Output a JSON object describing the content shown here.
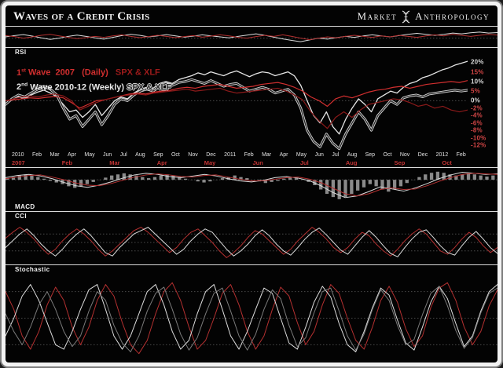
{
  "header": {
    "title": "Waves of a Credit Crisis",
    "brand": {
      "left": "Market",
      "right": "Anthropology"
    }
  },
  "chart_data": {
    "type": "line",
    "title": "Waves of a Credit Crisis",
    "xaxis": {
      "top_row": {
        "color": "#e2e2e2",
        "labels": [
          "2010",
          "Feb",
          "Mar",
          "Apr",
          "May",
          "Jun",
          "Jul",
          "Aug",
          "Sep",
          "Oct",
          "Nov",
          "Dec",
          "2011",
          "Feb",
          "Mar",
          "Apr",
          "May",
          "Jun",
          "Jul",
          "Aug",
          "Sep",
          "Oct",
          "Nov",
          "Dec",
          "2012",
          "Feb"
        ]
      },
      "bottom_row": {
        "color": "#c33434",
        "labels": [
          "2007",
          "Feb",
          "Mar",
          "Apr",
          "May",
          "Jun",
          "Jul",
          "Aug",
          "Sep",
          "Oct"
        ]
      }
    },
    "main": {
      "legend": [
        {
          "segments": [
            {
              "text": "1",
              "sup": "st",
              "color": "#d22f2f"
            },
            {
              "text": " Wave  2007",
              "color": "#d22f2f"
            },
            {
              "text": "   (Daily)",
              "color": "#d22f2f"
            },
            {
              "text": "   SPX & XLF",
              "color": "#9e1b1b"
            }
          ]
        },
        {
          "segments": [
            {
              "text": "2",
              "sup": "nd",
              "color": "#e8e8e8"
            },
            {
              "text": " Wave 2010-12",
              "color": "#e8e8e8"
            },
            {
              "text": " (Weekly)",
              "color": "#e8e8e8"
            },
            {
              "text": " SPX & XLF",
              "color": "#2b2b2b",
              "outline": true
            }
          ]
        }
      ],
      "axis": {
        "pos_max": 23,
        "neg_min": -13.5,
        "zero_frac": 0.47
      },
      "gridlines": [
        0
      ],
      "ylabels": [
        {
          "text": "20%",
          "value": 20,
          "color": "#d8d8d8"
        },
        {
          "text": "15%",
          "value": 15,
          "color": "#d04545"
        },
        {
          "text": "10%",
          "value": 10,
          "color": "#d8d8d8"
        },
        {
          "text": "5%",
          "value": 5,
          "color": "#d04545"
        },
        {
          "text": "0%",
          "value": 0,
          "color": "#d8d8d8"
        },
        {
          "text": "-2%",
          "value": -2,
          "color": "#d04545"
        },
        {
          "text": "-4%",
          "value": -4,
          "color": "#d04545"
        },
        {
          "text": "-6%",
          "value": -6,
          "color": "#d04545"
        },
        {
          "text": "-8%",
          "value": -8,
          "color": "#d04545"
        },
        {
          "text": "-10%",
          "value": -10,
          "color": "#d04545"
        },
        {
          "text": "-12%",
          "value": -12,
          "color": "#d04545"
        }
      ],
      "series": [
        {
          "name": "spx-2010-12",
          "color": "#e6e6e6",
          "width": 1.3,
          "values": [
            -1,
            0.5,
            2,
            1,
            3,
            4.5,
            5.5,
            4,
            2,
            -1,
            -3,
            -2.5,
            -4.5,
            -3,
            -1,
            -4,
            -2,
            0,
            2,
            1,
            4,
            6,
            7,
            6.5,
            9,
            10,
            9,
            11,
            12,
            13,
            14.5,
            13.5,
            15,
            14,
            13,
            14.5,
            15.5,
            14,
            12.5,
            14,
            15,
            14.5,
            13,
            14,
            15,
            13,
            8,
            0,
            -4,
            -6,
            -3,
            -7,
            -9,
            -5,
            -2,
            1,
            -1,
            -3,
            1,
            3,
            5,
            4,
            7,
            9,
            10,
            12,
            13,
            14.5,
            16,
            17,
            18.5,
            19.5,
            20.5
          ]
        },
        {
          "name": "xlf-2010-12",
          "color": "#262626",
          "halo": "#d4d4d4",
          "width": 1.3,
          "values": [
            -1,
            1,
            3,
            2,
            4,
            6,
            7.5,
            6,
            3,
            -2,
            -5,
            -4,
            -7,
            -5,
            -3,
            -6.5,
            -4,
            -1,
            1,
            0,
            3,
            5,
            6,
            5,
            7.5,
            9,
            8,
            9.5,
            10,
            11,
            10,
            9,
            10.5,
            9,
            7.5,
            8.5,
            9,
            7,
            5,
            6,
            7,
            6,
            4,
            5,
            6,
            3,
            -2,
            -8,
            -11,
            -12.5,
            -9,
            -11.5,
            -13,
            -9,
            -6,
            -3,
            -5,
            -8,
            -4,
            -2,
            0,
            -1,
            1.5,
            2.5,
            3,
            2,
            3.5,
            4,
            4.5,
            5,
            5.5,
            5,
            5.5
          ]
        },
        {
          "name": "spx-2007",
          "color": "#d22f2f",
          "width": 1.2,
          "values": [
            0,
            0.5,
            1,
            1.5,
            1.2,
            1.8,
            2.2,
            1.5,
            -0.5,
            -2,
            -1,
            0,
            0.5,
            1.5,
            2.5,
            3.5,
            4,
            3.5,
            4.5,
            5,
            5.5,
            6.5,
            7,
            6.5,
            7.5,
            8,
            8.5,
            7.5,
            6.5,
            7,
            7.5,
            8.5,
            9,
            9.5,
            8.5,
            7,
            5,
            2,
            0,
            -1.5,
            1,
            2.5,
            1.5,
            3,
            4.5,
            5.5,
            6,
            7,
            7.5,
            6.5,
            7.5,
            8.5,
            9,
            9.5,
            10,
            9.5,
            10.5
          ]
        },
        {
          "name": "xlf-2007",
          "color": "#8c1a1a",
          "width": 1.2,
          "values": [
            0,
            1,
            2,
            2.5,
            2,
            3,
            3.5,
            2.5,
            0,
            -2.5,
            -1.5,
            -0.5,
            0.5,
            1.5,
            2.5,
            3,
            3.5,
            3,
            4,
            4.5,
            5,
            5.5,
            6,
            5,
            5.5,
            6,
            6.5,
            5,
            4,
            4.5,
            5,
            5.5,
            6,
            6.5,
            5,
            3,
            0.5,
            -3,
            -5.5,
            -7.5,
            -4.5,
            -3,
            -4.5,
            -2.5,
            -1,
            -0.5,
            0,
            1,
            0.5,
            -0.5,
            -1.5,
            -1,
            -2,
            -1.5,
            -2.5,
            -3,
            -2.5
          ]
        }
      ]
    },
    "rsi": {
      "label": "RSI",
      "range": [
        15,
        95
      ],
      "gridlines": [
        50
      ],
      "series": [
        {
          "name": "rsi-2010-12",
          "color": "#dcdcdc",
          "width": 1,
          "values": [
            55,
            60,
            64,
            58,
            51,
            45,
            50,
            57,
            62,
            57,
            51,
            46,
            53,
            60,
            65,
            61,
            55,
            59,
            64,
            59,
            54,
            58,
            63,
            59,
            55,
            51,
            57,
            62,
            67,
            61,
            54,
            47,
            41,
            36,
            43,
            50,
            46,
            52,
            57,
            53,
            59,
            63,
            59,
            55,
            60,
            65,
            69,
            65,
            61,
            65,
            70,
            67,
            71,
            74,
            70,
            72
          ]
        },
        {
          "name": "rsi-2007",
          "color": "#b43030",
          "width": 1,
          "values": [
            60,
            56,
            50,
            55,
            61,
            65,
            59,
            53,
            48,
            52,
            57,
            53,
            59,
            63,
            57,
            52,
            56,
            61,
            57,
            52,
            56,
            60,
            54,
            58,
            63,
            59,
            53,
            50,
            56,
            61,
            57,
            63,
            57,
            50,
            44,
            50,
            55,
            51,
            57,
            61,
            57,
            53,
            59,
            55,
            61,
            57,
            53,
            59,
            63,
            59,
            65,
            61,
            57,
            61,
            65,
            62
          ]
        }
      ]
    },
    "macd": {
      "label": "MACD",
      "range": [
        -4.2,
        2.2
      ],
      "gridlines": [
        0
      ],
      "histogram": {
        "color": "#8a8a8a",
        "values": [
          0.3,
          0.5,
          0.8,
          1,
          0.8,
          0.5,
          0.2,
          -0.2,
          -0.5,
          -0.8,
          -1.2,
          -1.5,
          -1.2,
          -0.8,
          -0.4,
          0,
          0.4,
          0.8,
          1,
          1.2,
          1,
          0.8,
          0.5,
          0.3,
          0.5,
          0.8,
          1,
          0.8,
          0.5,
          0.2,
          0,
          -0.3,
          -0.5,
          -0.3,
          0,
          0.3,
          0.5,
          0.8,
          0.5,
          0.3,
          0,
          -0.3,
          -0.6,
          -0.4,
          -0.2,
          0.2,
          0.5,
          0.3,
          0,
          -0.4,
          -1,
          -1.8,
          -2.6,
          -3.2,
          -3.6,
          -3.2,
          -2.6,
          -2,
          -1.4,
          -0.8,
          -1.2,
          -1.8,
          -2.2,
          -1.8,
          -1.2,
          -0.6,
          0,
          0.5,
          1,
          1.3,
          1.5,
          1.3,
          1,
          0.8,
          1,
          1.2,
          1,
          0.8,
          0.6,
          0.8
        ]
      },
      "series": [
        {
          "name": "macd-2010-12",
          "color": "#dcdcdc",
          "width": 1,
          "values": [
            0.4,
            0.8,
            1,
            0.7,
            0.2,
            -0.5,
            -1.1,
            -1.4,
            -1,
            -0.4,
            0.3,
            0.9,
            1.2,
            1,
            0.6,
            0.4,
            0.7,
            1,
            0.7,
            0.2,
            -0.2,
            -0.4,
            -0.1,
            0.4,
            0.6,
            0.3,
            -0.2,
            -1.2,
            -2.4,
            -3.3,
            -3,
            -2.2,
            -1.3,
            -1.7,
            -2.1,
            -1.5,
            -0.7,
            0.2,
            0.9,
            1.4,
            1.2,
            1,
            1.1
          ]
        },
        {
          "name": "macd-2007",
          "color": "#b43030",
          "width": 1,
          "values": [
            0.2,
            0.5,
            0.8,
            0.9,
            0.5,
            0,
            -0.6,
            -1,
            -1.1,
            -0.7,
            -0.1,
            0.5,
            0.9,
            1.1,
            0.9,
            0.6,
            0.5,
            0.8,
            0.9,
            0.5,
            0.1,
            -0.2,
            -0.2,
            0.1,
            0.4,
            0.5,
            0.1,
            -0.6,
            -1.6,
            -2.6,
            -3,
            -2.6,
            -1.8,
            -1.5,
            -1.8,
            -1.7,
            -1.1,
            -0.3,
            0.4,
            1,
            1.2,
            1.1,
            1
          ]
        }
      ]
    },
    "cci": {
      "label": "CCI",
      "range": [
        -260,
        260
      ],
      "gridlines": [
        100,
        0,
        -100
      ],
      "series": [
        {
          "name": "cci-2007",
          "color": "#b43030",
          "width": 1,
          "values": [
            50,
            120,
            180,
            120,
            40,
            -60,
            -140,
            -80,
            20,
            100,
            160,
            100,
            20,
            -80,
            -160,
            -100,
            -20,
            60,
            140,
            180,
            120,
            40,
            -40,
            -120,
            -60,
            40,
            120,
            160,
            80,
            0,
            -100,
            -180,
            -120,
            -40,
            60,
            140,
            100,
            20,
            -60,
            -140,
            -80,
            20,
            100,
            180,
            120,
            40,
            -60,
            -120,
            -60,
            40,
            120,
            80,
            -20,
            -100,
            -160,
            -80,
            20,
            100,
            160,
            100,
            0,
            -100,
            -140,
            -60,
            40,
            120,
            60,
            -40,
            -120,
            -60
          ]
        },
        {
          "name": "cci-2010-12",
          "color": "#dcdcdc",
          "width": 1,
          "values": [
            -60,
            20,
            100,
            160,
            80,
            -20,
            -100,
            -160,
            -80,
            20,
            100,
            160,
            80,
            -20,
            -120,
            -160,
            -60,
            20,
            100,
            140,
            180,
            100,
            20,
            -60,
            -140,
            -80,
            20,
            100,
            160,
            120,
            20,
            -80,
            -160,
            -100,
            -20,
            80,
            150,
            80,
            -20,
            -100,
            -150,
            -60,
            40,
            120,
            170,
            90,
            0,
            -90,
            -140,
            -40,
            60,
            140,
            60,
            -40,
            -130,
            -170,
            -60,
            40,
            120,
            150,
            60,
            -40,
            -120,
            -150,
            -40,
            60,
            130,
            40,
            -60,
            -130
          ]
        }
      ]
    },
    "stochastic": {
      "label": "Stochastic",
      "range": [
        0,
        100
      ],
      "gridlines": [
        80,
        50,
        20
      ],
      "series": [
        {
          "name": "stoch-2007",
          "color": "#b43030",
          "width": 1,
          "values": [
            80,
            60,
            30,
            15,
            35,
            65,
            85,
            70,
            40,
            20,
            40,
            70,
            88,
            75,
            45,
            20,
            10,
            25,
            55,
            80,
            90,
            70,
            40,
            15,
            25,
            50,
            78,
            88,
            65,
            35,
            15,
            30,
            60,
            85,
            75,
            45,
            20,
            35,
            65,
            88,
            78,
            50,
            25,
            15,
            40,
            70,
            86,
            68,
            38,
            18,
            30,
            62,
            84,
            90,
            70,
            40,
            20,
            35,
            64,
            82
          ]
        },
        {
          "name": "stoch-2010-12",
          "color": "#dcdcdc",
          "width": 1,
          "values": [
            30,
            50,
            75,
            88,
            70,
            45,
            20,
            15,
            35,
            60,
            82,
            88,
            60,
            30,
            15,
            30,
            55,
            80,
            88,
            65,
            35,
            15,
            25,
            55,
            80,
            88,
            60,
            30,
            15,
            35,
            60,
            84,
            78,
            50,
            22,
            15,
            40,
            68,
            86,
            74,
            44,
            20,
            12,
            35,
            62,
            84,
            76,
            48,
            22,
            14,
            40,
            68,
            86,
            72,
            44,
            18,
            30,
            58,
            80,
            88
          ]
        },
        {
          "name": "stoch-secondary",
          "color": "#7a7a7a",
          "width": 1,
          "values": [
            55,
            35,
            20,
            40,
            65,
            80,
            60,
            35,
            18,
            30,
            58,
            80,
            70,
            42,
            22,
            12,
            30,
            58,
            78,
            85,
            60,
            32,
            14,
            28,
            55,
            78,
            84,
            58,
            30,
            14,
            32,
            60,
            82,
            72,
            42,
            18,
            28,
            56,
            80,
            84,
            58,
            30,
            14,
            32,
            60,
            82,
            70,
            42,
            20,
            26,
            54,
            78,
            86,
            64,
            36,
            16,
            28,
            56,
            78,
            84
          ]
        }
      ]
    }
  }
}
